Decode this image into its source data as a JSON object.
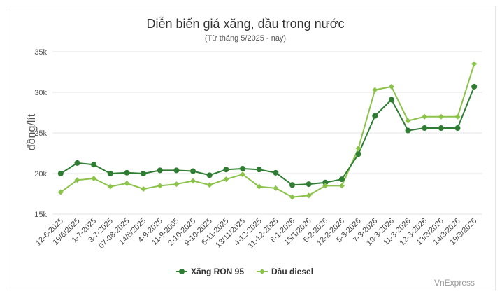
{
  "chart_data": {
    "type": "line",
    "title": "Diễn biến giá xăng, dầu trong nước",
    "subtitle": "(Từ tháng 5/2025 - nay)",
    "ylabel": "đồng/lít",
    "xlabel": "",
    "ylim": [
      15000,
      35000
    ],
    "yticks": [
      {
        "value": 15000,
        "label": "15k"
      },
      {
        "value": 20000,
        "label": "20k"
      },
      {
        "value": 25000,
        "label": "25k"
      },
      {
        "value": 30000,
        "label": "30k"
      },
      {
        "value": 35000,
        "label": "35k"
      }
    ],
    "grid": "horizontal",
    "legend_position": "bottom-center",
    "categories": [
      "12-6-2025",
      "19/6/2025",
      "1-7-2025",
      "3-7-2025",
      "07-08-2025",
      "14/8/2025",
      "4-9-2025",
      "11-9-2005",
      "2-10-2025",
      "9-10-2025",
      "6-11-2025",
      "13/11/2025",
      "4-12-2025",
      "11-12-2025",
      "8-1-2026",
      "15/1/2026",
      "5-2-2026",
      "12-2-2026",
      "5-3-2026",
      "7-3-2026",
      "10-3-2026",
      "11-3-2026",
      "12-3-2026",
      "13/3/2026",
      "14/3/2026",
      "19/3/2026"
    ],
    "series": [
      {
        "name": "Xăng RON 95",
        "color": "#2e7d32",
        "marker": "circle",
        "values": [
          20000,
          21300,
          21100,
          20000,
          20100,
          20000,
          20400,
          20400,
          20300,
          19800,
          20500,
          20600,
          20500,
          20100,
          18600,
          18700,
          18900,
          19300,
          22400,
          27100,
          29100,
          25300,
          25600,
          25600,
          25600,
          30700
        ]
      },
      {
        "name": "Dầu diesel",
        "color": "#8bc34a",
        "marker": "diamond",
        "values": [
          17700,
          19200,
          19400,
          18400,
          18800,
          18100,
          18500,
          18700,
          19100,
          18600,
          19300,
          19900,
          18400,
          18200,
          17100,
          17300,
          18500,
          18500,
          23100,
          30300,
          30700,
          26500,
          27000,
          27000,
          27000,
          33500
        ]
      }
    ]
  },
  "credit": "VnExpress"
}
